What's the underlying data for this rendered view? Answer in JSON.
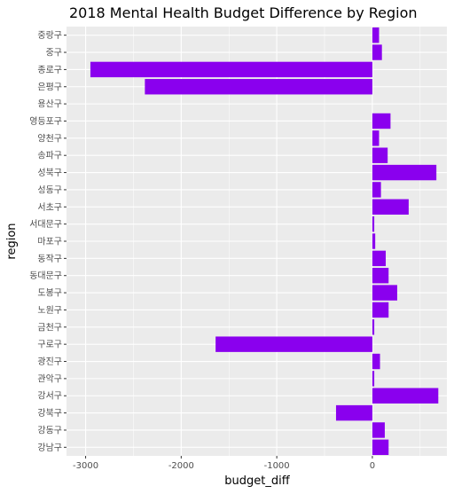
{
  "chart_data": {
    "type": "bar",
    "orientation": "horizontal",
    "title": "2018 Mental Health Budget Difference by Region",
    "xlabel": "budget_diff",
    "ylabel": "region",
    "xlim": [
      -3200,
      780
    ],
    "xticks": [
      -3000,
      -2000,
      -1000,
      0
    ],
    "xtick_labels": [
      "-3000",
      "-2000",
      "-1000",
      "0"
    ],
    "grid": true,
    "bar_color": "#8A00EE",
    "panel_color": "#EBEBEB",
    "categories": [
      "중랑구",
      "중구",
      "종로구",
      "은평구",
      "용산구",
      "영등포구",
      "양천구",
      "송파구",
      "성북구",
      "성동구",
      "서초구",
      "서대문구",
      "마포구",
      "동작구",
      "동대문구",
      "도봉구",
      "노원구",
      "금천구",
      "구로구",
      "광진구",
      "관악구",
      "강서구",
      "강북구",
      "강동구",
      "강남구"
    ],
    "values": [
      70,
      100,
      -2950,
      -2380,
      0,
      190,
      70,
      160,
      670,
      90,
      380,
      20,
      30,
      140,
      170,
      260,
      170,
      20,
      -1640,
      80,
      20,
      690,
      -380,
      130,
      170
    ]
  }
}
